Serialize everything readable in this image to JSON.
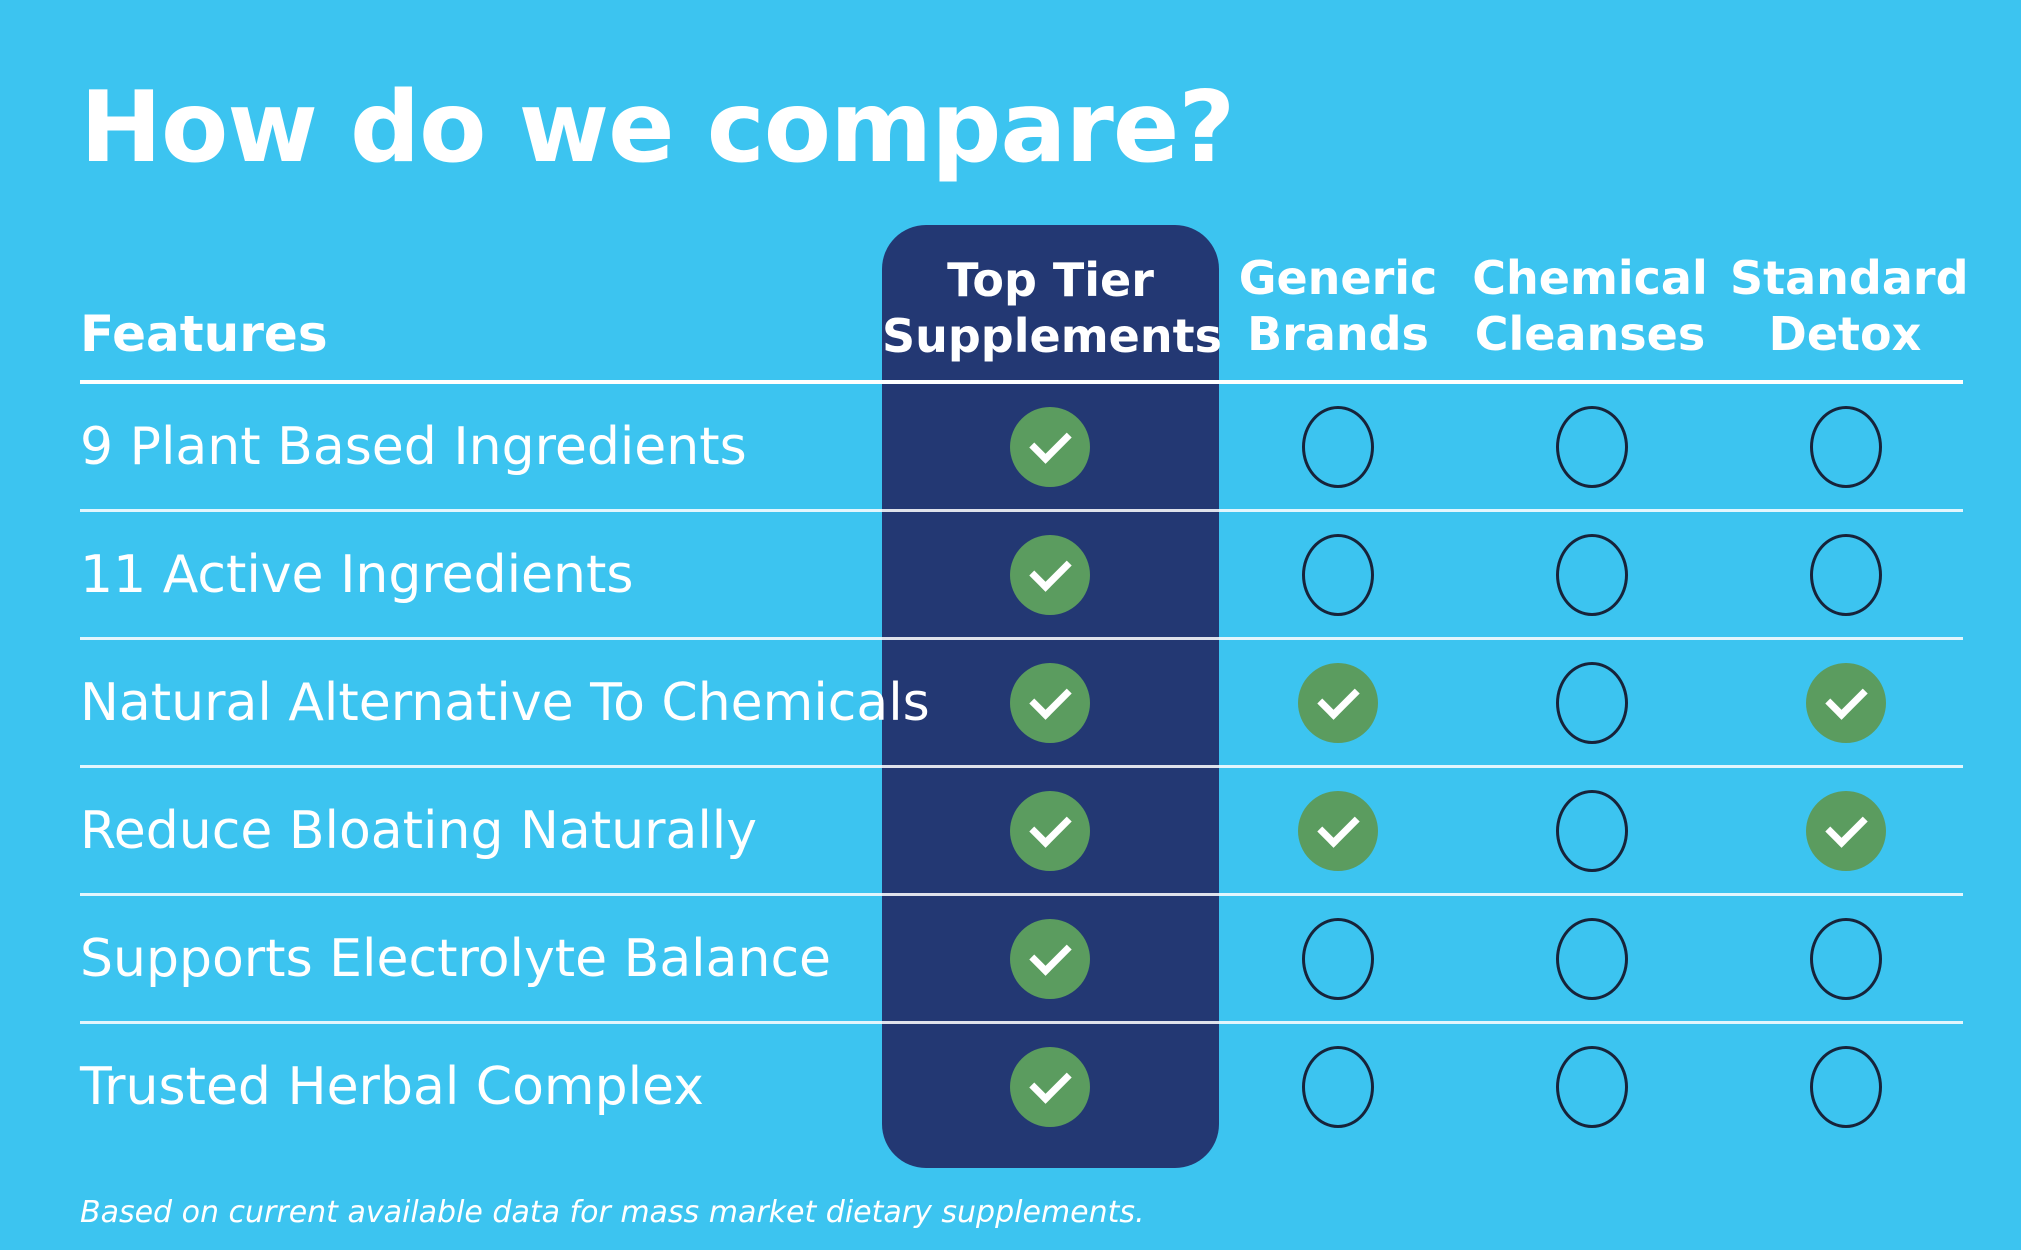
{
  "title": "How do we compare?",
  "features_label": "Features",
  "columns": [
    {
      "line1": "Top Tier",
      "line2": "Supplements"
    },
    {
      "line1": "Generic",
      "line2": "Brands"
    },
    {
      "line1": "Chemical",
      "line2": "Cleanses"
    },
    {
      "line1": "Standard",
      "line2": "Detox"
    }
  ],
  "rows": [
    {
      "label": "9 Plant Based Ingredients",
      "marks": [
        true,
        false,
        false,
        false
      ]
    },
    {
      "label": "11 Active Ingredients",
      "marks": [
        true,
        false,
        false,
        false
      ]
    },
    {
      "label": "Natural Alternative To Chemicals",
      "marks": [
        true,
        true,
        false,
        true
      ]
    },
    {
      "label": "Reduce Bloating Naturally",
      "marks": [
        true,
        true,
        false,
        true
      ]
    },
    {
      "label": "Supports Electrolyte Balance",
      "marks": [
        true,
        false,
        false,
        false
      ]
    },
    {
      "label": "Trusted Herbal Complex",
      "marks": [
        true,
        false,
        false,
        false
      ]
    }
  ],
  "footnote": "Based on current available data for mass market dietary supplements.",
  "icons": {
    "included": "checkmark-icon",
    "not_included": "empty-circle-icon"
  },
  "colors": {
    "background": "#3cc4f0",
    "highlight_column": "#233873",
    "check_fill": "#5b9c5f",
    "empty_circle_stroke": "#17233a"
  }
}
